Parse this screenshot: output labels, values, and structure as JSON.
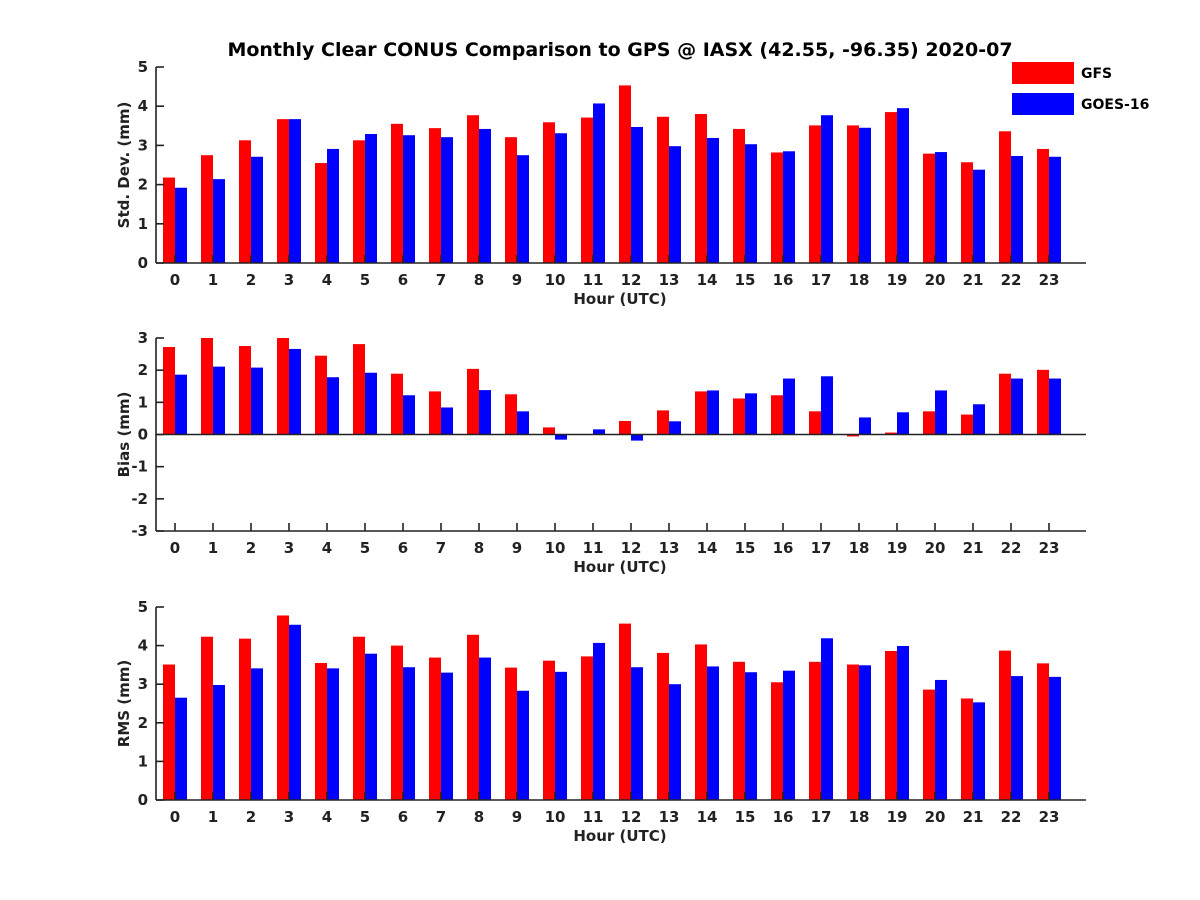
{
  "title": "Monthly Clear CONUS Comparison to GPS @ IASX (42.55, -96.35) 2020-07",
  "colors": {
    "GFS": "#ff0000",
    "GOES-16": "#0000ff"
  },
  "legend": {
    "placement": "top-right",
    "entries": [
      "GFS",
      "GOES-16"
    ]
  },
  "chart_data": [
    {
      "type": "bar",
      "xlabel": "Hour (UTC)",
      "ylabel": "Std. Dev. (mm)",
      "ylim": [
        0,
        5
      ],
      "yticks": [
        0,
        1,
        2,
        3,
        4,
        5
      ],
      "categories": [
        "0",
        "1",
        "2",
        "3",
        "4",
        "5",
        "6",
        "7",
        "8",
        "9",
        "10",
        "11",
        "12",
        "13",
        "14",
        "15",
        "16",
        "17",
        "18",
        "19",
        "20",
        "21",
        "22",
        "23"
      ],
      "series": [
        {
          "name": "GFS",
          "values": [
            2.18,
            2.75,
            3.13,
            3.67,
            2.55,
            3.13,
            3.55,
            3.44,
            3.77,
            3.21,
            3.59,
            3.71,
            4.53,
            3.73,
            3.8,
            3.42,
            2.82,
            3.51,
            3.51,
            3.85,
            2.79,
            2.57,
            3.36,
            2.91
          ]
        },
        {
          "name": "GOES-16",
          "values": [
            1.92,
            2.14,
            2.71,
            3.67,
            2.91,
            3.29,
            3.26,
            3.21,
            3.42,
            2.75,
            3.31,
            4.07,
            3.47,
            2.98,
            3.19,
            3.03,
            2.85,
            3.77,
            3.45,
            3.95,
            2.83,
            2.38,
            2.73,
            2.71
          ]
        }
      ]
    },
    {
      "type": "bar",
      "xlabel": "Hour (UTC)",
      "ylabel": "Bias (mm)",
      "ylim": [
        -3,
        3
      ],
      "yticks": [
        -3,
        -2,
        -1,
        0,
        1,
        2,
        3
      ],
      "categories": [
        "0",
        "1",
        "2",
        "3",
        "4",
        "5",
        "6",
        "7",
        "8",
        "9",
        "10",
        "11",
        "12",
        "13",
        "14",
        "15",
        "16",
        "17",
        "18",
        "19",
        "20",
        "21",
        "22",
        "23"
      ],
      "series": [
        {
          "name": "GFS",
          "values": [
            2.72,
            3.0,
            2.75,
            3.0,
            2.45,
            2.81,
            1.89,
            1.34,
            2.04,
            1.25,
            0.22,
            0.0,
            0.42,
            0.75,
            1.34,
            1.12,
            1.22,
            0.72,
            -0.06,
            0.06,
            0.72,
            0.62,
            1.89,
            2.01
          ]
        },
        {
          "name": "GOES-16",
          "values": [
            1.86,
            2.11,
            2.08,
            2.66,
            1.78,
            1.92,
            1.22,
            0.84,
            1.38,
            0.72,
            -0.16,
            0.16,
            -0.19,
            0.41,
            1.37,
            1.28,
            1.74,
            1.81,
            0.53,
            0.69,
            1.37,
            0.94,
            1.74,
            1.74
          ]
        }
      ]
    },
    {
      "type": "bar",
      "xlabel": "Hour (UTC)",
      "ylabel": "RMS (mm)",
      "ylim": [
        0,
        5
      ],
      "yticks": [
        0,
        1,
        2,
        3,
        4,
        5
      ],
      "categories": [
        "0",
        "1",
        "2",
        "3",
        "4",
        "5",
        "6",
        "7",
        "8",
        "9",
        "10",
        "11",
        "12",
        "13",
        "14",
        "15",
        "16",
        "17",
        "18",
        "19",
        "20",
        "21",
        "22",
        "23"
      ],
      "series": [
        {
          "name": "GFS",
          "values": [
            3.51,
            4.23,
            4.18,
            4.78,
            3.55,
            4.23,
            4.0,
            3.69,
            4.28,
            3.43,
            3.61,
            3.72,
            4.57,
            3.81,
            4.03,
            3.58,
            3.05,
            3.58,
            3.51,
            3.86,
            2.86,
            2.63,
            3.87,
            3.54
          ]
        },
        {
          "name": "GOES-16",
          "values": [
            2.65,
            2.98,
            3.41,
            4.54,
            3.41,
            3.79,
            3.44,
            3.3,
            3.69,
            2.83,
            3.32,
            4.07,
            3.44,
            3.0,
            3.46,
            3.31,
            3.35,
            4.19,
            3.49,
            3.99,
            3.11,
            2.53,
            3.21,
            3.19
          ]
        }
      ]
    }
  ]
}
